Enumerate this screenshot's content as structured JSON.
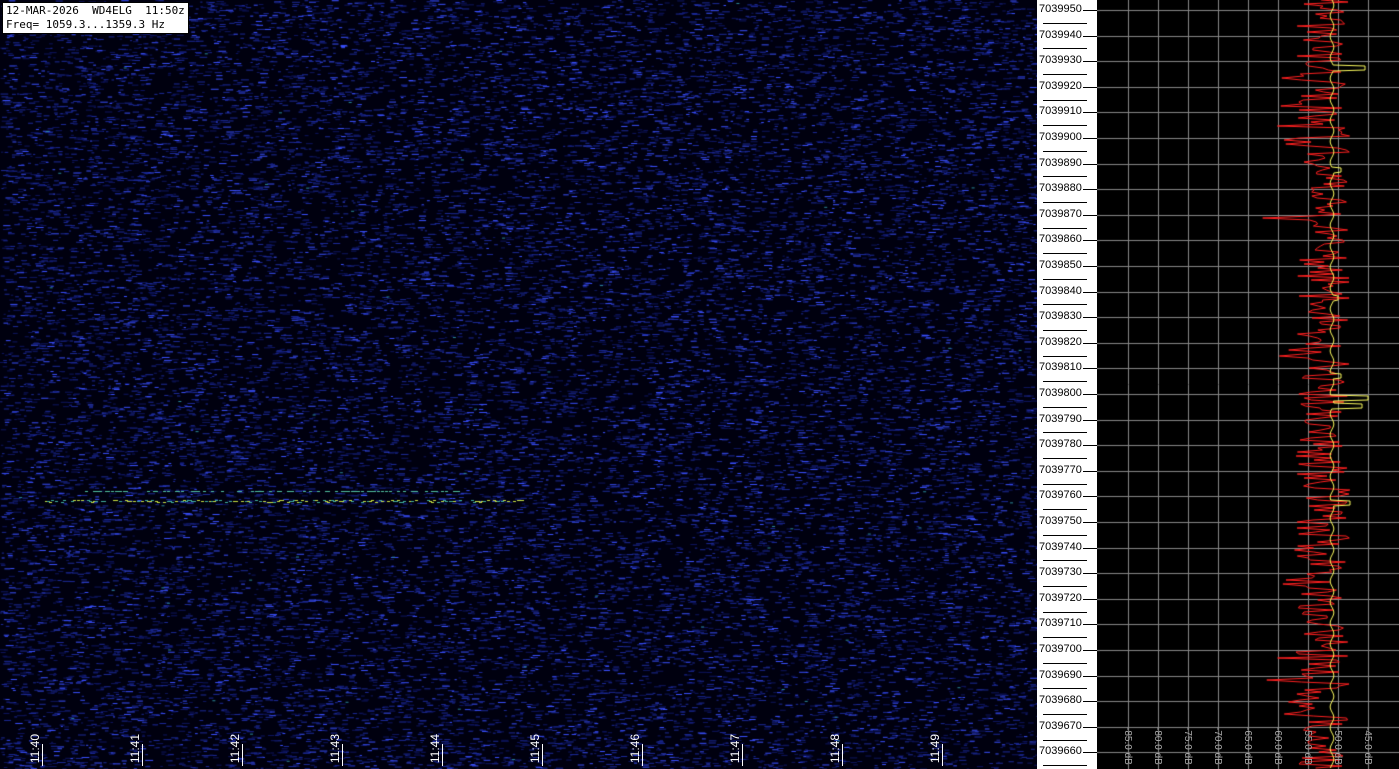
{
  "header": {
    "line1": "12-MAR-2026  WD4ELG  11:50z",
    "line2": "Freq= 1059.3...1359.3 Hz"
  },
  "time_axis": [
    "11:40",
    "11:41",
    "11:42",
    "11:43",
    "11:44",
    "11:45",
    "11:46",
    "11:47",
    "11:48",
    "11:49"
  ],
  "freq_axis": [
    "7039950",
    "7039940",
    "7039930",
    "7039920",
    "7039910",
    "7039900",
    "7039890",
    "7039880",
    "7039870",
    "7039860",
    "7039850",
    "7039840",
    "7039830",
    "7039820",
    "7039810",
    "7039800",
    "7039790",
    "7039780",
    "7039770",
    "7039760",
    "7039750",
    "7039740",
    "7039730",
    "7039720",
    "7039710",
    "7039700",
    "7039690",
    "7039680",
    "7039670",
    "7039660"
  ],
  "db_axis": [
    "-85.0 dB",
    "-80.0 dB",
    "-75.0 dB",
    "-70.0 dB",
    "-65.0 dB",
    "-60.0 dB",
    "-55.0 dB",
    "-50.0 dB",
    "-45.0 dB"
  ],
  "colors": {
    "waterfall_bg": "#00000f",
    "noise": "#2a3ad0",
    "signal": "#c8e040",
    "spectrum_peak": "#ff2020",
    "spectrum_avg": "#ffff60",
    "grid": "#888888"
  }
}
